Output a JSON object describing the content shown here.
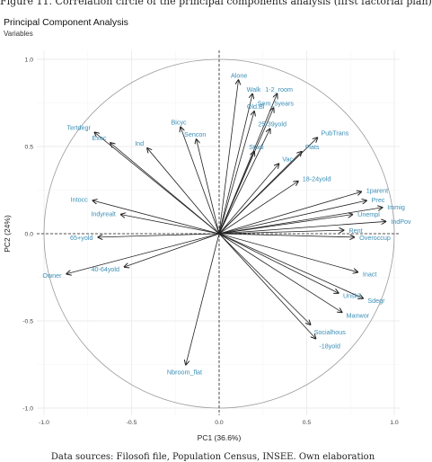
{
  "figure": {
    "caption_top": "Figure 11. Correlation circle of the principal components analysis (first factorial plan)",
    "caption_bottom": "Data sources: Filosofi file, Population Census, INSEE. Own elaboration"
  },
  "colors": {
    "arrow": "#222222",
    "label": "#3a8fb7",
    "circle": "#9a9a9a",
    "grid": "#ebebeb",
    "axis_line": "#222222"
  },
  "chart_data": {
    "type": "scatter",
    "title": "Principal Component Analysis",
    "subtitle": "Variables",
    "xlabel": "PC1 (36.6%)",
    "ylabel": "PC2 (24%)",
    "xlim": [
      -1.0,
      1.0
    ],
    "ylim": [
      -1.0,
      1.0
    ],
    "xticks": [
      -1.0,
      -0.5,
      0.0,
      0.5,
      1.0
    ],
    "yticks": [
      -1.0,
      -0.5,
      0.0,
      0.5,
      1.0
    ],
    "xtick_labels": [
      "-1.0",
      "-0.5",
      "0.0",
      "0.5",
      "1.0"
    ],
    "ytick_labels": [
      "-1.0",
      "-0.5",
      "0.0",
      "0.5",
      "1.0"
    ],
    "grid": true,
    "unit_circle": true,
    "variables": [
      {
        "name": "Alone",
        "x": 0.11,
        "y": 0.88
      },
      {
        "name": "Walk",
        "x": 0.19,
        "y": 0.8
      },
      {
        "name": "1-2_room",
        "x": 0.33,
        "y": 0.8
      },
      {
        "name": "Sem_5years",
        "x": 0.31,
        "y": 0.72
      },
      {
        "name": "Old.Bl",
        "x": 0.2,
        "y": 0.7
      },
      {
        "name": "25-39yold",
        "x": 0.29,
        "y": 0.6
      },
      {
        "name": "Studi",
        "x": 0.2,
        "y": 0.47
      },
      {
        "name": "PubTrans",
        "x": 0.56,
        "y": 0.55
      },
      {
        "name": "Flats",
        "x": 0.47,
        "y": 0.47
      },
      {
        "name": "Vac",
        "x": 0.34,
        "y": 0.4
      },
      {
        "name": "18-24yold",
        "x": 0.45,
        "y": 0.3
      },
      {
        "name": "1parent",
        "x": 0.81,
        "y": 0.24
      },
      {
        "name": "Prec",
        "x": 0.84,
        "y": 0.19
      },
      {
        "name": "Immig",
        "x": 0.93,
        "y": 0.15
      },
      {
        "name": "Unempl",
        "x": 0.76,
        "y": 0.11
      },
      {
        "name": "IndPov",
        "x": 0.95,
        "y": 0.07
      },
      {
        "name": "Rent",
        "x": 0.71,
        "y": 0.02
      },
      {
        "name": "Overoccup",
        "x": 0.77,
        "y": -0.02
      },
      {
        "name": "Inact",
        "x": 0.79,
        "y": -0.22
      },
      {
        "name": "Sdegr",
        "x": 0.82,
        "y": -0.37
      },
      {
        "name": "Unskil",
        "x": 0.68,
        "y": -0.34
      },
      {
        "name": "Manwor",
        "x": 0.7,
        "y": -0.45
      },
      {
        "name": "Socialhous",
        "x": 0.52,
        "y": -0.52
      },
      {
        "name": "-18yold",
        "x": 0.55,
        "y": -0.6
      },
      {
        "name": "Tertdegr",
        "x": -0.71,
        "y": 0.58
      },
      {
        "name": "Exec",
        "x": -0.62,
        "y": 0.52
      },
      {
        "name": "Ind",
        "x": -0.41,
        "y": 0.49
      },
      {
        "name": "Bicyc",
        "x": -0.22,
        "y": 0.61
      },
      {
        "name": "Sencon",
        "x": -0.13,
        "y": 0.54
      },
      {
        "name": "Intocc",
        "x": -0.72,
        "y": 0.19
      },
      {
        "name": "Indyrealt",
        "x": -0.56,
        "y": 0.11
      },
      {
        "name": "65+yold",
        "x": -0.69,
        "y": -0.02
      },
      {
        "name": "40-64yold",
        "x": -0.54,
        "y": -0.19
      },
      {
        "name": "Owner",
        "x": -0.87,
        "y": -0.23
      },
      {
        "name": "Nbroom_flat",
        "x": -0.19,
        "y": -0.75
      }
    ]
  }
}
